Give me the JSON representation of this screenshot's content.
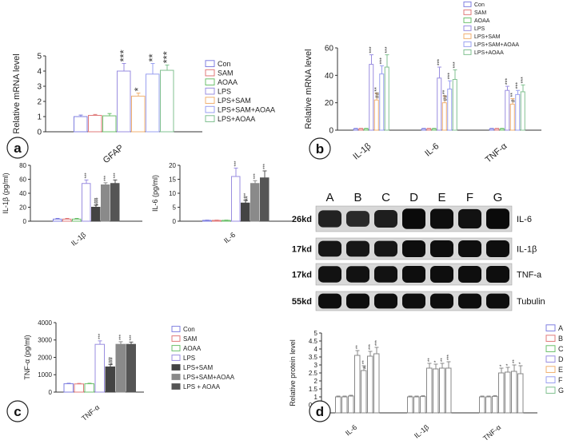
{
  "colors": {
    "axis": "#333333",
    "text": "#222222",
    "star": "#333333",
    "series": [
      "#7f7fe0",
      "#e07a7a",
      "#6cc06c",
      "#9a8ee0",
      "#f0b070",
      "#9aa0f0",
      "#80c090"
    ],
    "dark_series": [
      "#444444",
      "#8a8a8a",
      "#555555"
    ],
    "blot_band": "#1a1a1a"
  },
  "chart_data": [
    {
      "id": "a",
      "type": "bar",
      "panel_letter": "a",
      "categories": [
        "GFAP"
      ],
      "ylabel": "Relative mRNA level",
      "ylim": [
        0,
        5
      ],
      "yticks": [
        "0",
        "1",
        "2",
        "3",
        "4",
        "5"
      ],
      "legend": [
        "Con",
        "SAM",
        "AOAA",
        "LPS",
        "LPS+SAM",
        "LPS+SAM+AOAA",
        "LPS+AOAA"
      ],
      "legend_position": "right",
      "series": [
        {
          "name": "Con",
          "values": [
            1.0
          ],
          "err": [
            0.1
          ],
          "stars": [
            ""
          ]
        },
        {
          "name": "SAM",
          "values": [
            1.08
          ],
          "err": [
            0.06
          ],
          "stars": [
            ""
          ]
        },
        {
          "name": "AOAA",
          "values": [
            1.05
          ],
          "err": [
            0.15
          ],
          "stars": [
            ""
          ]
        },
        {
          "name": "LPS",
          "values": [
            4.0
          ],
          "err": [
            0.5
          ],
          "stars": [
            "***"
          ]
        },
        {
          "name": "LPS+SAM",
          "values": [
            2.35
          ],
          "err": [
            0.2
          ],
          "stars": [
            "*",
            "###"
          ]
        },
        {
          "name": "LPS+SAM+AOAA",
          "values": [
            3.8
          ],
          "err": [
            0.7
          ],
          "stars": [
            "**"
          ]
        },
        {
          "name": "LPS+AOAA",
          "values": [
            4.05
          ],
          "err": [
            0.35
          ],
          "stars": [
            "***"
          ]
        }
      ]
    },
    {
      "id": "b",
      "type": "bar",
      "panel_letter": "b",
      "categories": [
        "IL-1β",
        "IL-6",
        "TNF-α"
      ],
      "ylabel": "Relative mRNA level",
      "ylim": [
        0,
        60
      ],
      "yticks": [
        "0",
        "20",
        "40",
        "60"
      ],
      "legend": [
        "Con",
        "SAM",
        "AOAA",
        "LPS",
        "LPS+SAM",
        "LPS+SAM+AOAA",
        "LPS+AOAA"
      ],
      "legend_position": "top-right",
      "series": [
        {
          "name": "Con",
          "values": [
            1,
            1,
            1
          ],
          "err": [
            0.3,
            0.3,
            0.3
          ]
        },
        {
          "name": "SAM",
          "values": [
            1,
            1,
            1
          ],
          "err": [
            0.3,
            0.3,
            0.3
          ]
        },
        {
          "name": "AOAA",
          "values": [
            1,
            1,
            1
          ],
          "err": [
            0.3,
            0.3,
            0.3
          ]
        },
        {
          "name": "LPS",
          "values": [
            48,
            38,
            29
          ],
          "err": [
            7,
            8,
            3
          ],
          "stars": [
            "***",
            "***",
            "***"
          ]
        },
        {
          "name": "LPS+SAM",
          "values": [
            22,
            20,
            19
          ],
          "err": [
            5,
            5,
            4
          ],
          "stars": [
            "**",
            "**",
            "**"
          ],
          "hash": [
            "##",
            "##",
            "#"
          ]
        },
        {
          "name": "LPS+SAM+AOAA",
          "values": [
            41,
            30,
            26
          ],
          "err": [
            6,
            6,
            3
          ],
          "stars": [
            "***",
            "***",
            "***"
          ]
        },
        {
          "name": "LPS+AOAA",
          "values": [
            46,
            37,
            28
          ],
          "err": [
            9,
            7,
            5
          ],
          "stars": [
            "***",
            "***",
            "***"
          ]
        }
      ]
    },
    {
      "id": "c1",
      "type": "bar",
      "categories": [
        "IL-1β"
      ],
      "ylabel": "IL-1β (pg/ml)",
      "ylim": [
        0,
        80
      ],
      "yticks": [
        "0",
        "20",
        "40",
        "60",
        "80"
      ],
      "series": [
        {
          "name": "Con",
          "values": [
            3
          ],
          "err": [
            1
          ]
        },
        {
          "name": "SAM",
          "values": [
            3
          ],
          "err": [
            1
          ]
        },
        {
          "name": "AOAA",
          "values": [
            3
          ],
          "err": [
            1
          ]
        },
        {
          "name": "LPS",
          "values": [
            54
          ],
          "err": [
            5
          ],
          "stars": [
            "***"
          ]
        },
        {
          "name": "LPS+SAM",
          "values": [
            20
          ],
          "err": [
            3
          ],
          "stars": [
            "***"
          ],
          "hash": [
            "###"
          ]
        },
        {
          "name": "LPS+SAM+AOAA",
          "values": [
            52
          ],
          "err": [
            3
          ],
          "stars": [
            "***"
          ]
        },
        {
          "name": "LPS + AOAA",
          "values": [
            54
          ],
          "err": [
            5
          ],
          "stars": [
            "***"
          ]
        }
      ]
    },
    {
      "id": "c2",
      "type": "bar",
      "categories": [
        "IL-6"
      ],
      "ylabel": "IL-6 (pg/ml)",
      "ylim": [
        0,
        20
      ],
      "yticks": [
        "0",
        "5",
        "10",
        "15",
        "20"
      ],
      "series": [
        {
          "name": "Con",
          "values": [
            0.3
          ],
          "err": [
            0.1
          ]
        },
        {
          "name": "SAM",
          "values": [
            0.3
          ],
          "err": [
            0.1
          ]
        },
        {
          "name": "AOAA",
          "values": [
            0.3
          ],
          "err": [
            0.1
          ]
        },
        {
          "name": "LPS",
          "values": [
            16
          ],
          "err": [
            3
          ],
          "stars": [
            "***"
          ]
        },
        {
          "name": "LPS+SAM",
          "values": [
            6.5
          ],
          "err": [
            1
          ],
          "stars": [
            "***"
          ],
          "hash": [
            "##"
          ]
        },
        {
          "name": "LPS+SAM+AOAA",
          "values": [
            13.5
          ],
          "err": [
            1
          ],
          "stars": [
            "***"
          ]
        },
        {
          "name": "LPS + AOAA",
          "values": [
            15.5
          ],
          "err": [
            2.5
          ],
          "stars": [
            "***"
          ]
        }
      ]
    },
    {
      "id": "c3",
      "type": "bar",
      "panel_letter": "c",
      "categories": [
        "TNF-α"
      ],
      "ylabel": "TNF-α (pg/ml)",
      "ylim": [
        0,
        4000
      ],
      "yticks": [
        "0",
        "1000",
        "2000",
        "3000",
        "4000"
      ],
      "legend": [
        "Con",
        "SAM",
        "AOAA",
        "LPS",
        "LPS+SAM",
        "LPS+SAM+AOAA",
        "LPS + AOAA"
      ],
      "legend_position": "right",
      "series": [
        {
          "name": "Con",
          "values": [
            480
          ],
          "err": [
            30
          ]
        },
        {
          "name": "SAM",
          "values": [
            470
          ],
          "err": [
            30
          ]
        },
        {
          "name": "AOAA",
          "values": [
            480
          ],
          "err": [
            30
          ]
        },
        {
          "name": "LPS",
          "values": [
            2750
          ],
          "err": [
            200
          ],
          "stars": [
            "***"
          ]
        },
        {
          "name": "LPS+SAM",
          "values": [
            1450
          ],
          "err": [
            150
          ],
          "stars": [
            "***"
          ],
          "hash": [
            "###"
          ]
        },
        {
          "name": "LPS+SAM+AOAA",
          "values": [
            2750
          ],
          "err": [
            150
          ],
          "stars": [
            "***"
          ]
        },
        {
          "name": "LPS + AOAA",
          "values": [
            2750
          ],
          "err": [
            130
          ],
          "stars": [
            "***"
          ]
        }
      ]
    },
    {
      "id": "d",
      "type": "bar",
      "panel_letter": "d",
      "categories": [
        "IL-6",
        "IL-1β",
        "TNF-α"
      ],
      "ylabel": "Relative protein level",
      "ylim": [
        0,
        5
      ],
      "yticks": [
        "0",
        "0.5",
        "1",
        "1.5",
        "2",
        "2.5",
        "3",
        "3.5",
        "4",
        "4.5",
        "5"
      ],
      "legend": [
        "A",
        "B",
        "C",
        "D",
        "E",
        "F",
        "G"
      ],
      "legend_position": "right",
      "series": [
        {
          "name": "A",
          "values": [
            1,
            1,
            1
          ],
          "err": [
            0.05,
            0.05,
            0.05
          ]
        },
        {
          "name": "B",
          "values": [
            1,
            1,
            1
          ],
          "err": [
            0.05,
            0.05,
            0.05
          ]
        },
        {
          "name": "C",
          "values": [
            1.05,
            1.02,
            1.03
          ],
          "err": [
            0.05,
            0.05,
            0.05
          ]
        },
        {
          "name": "D",
          "values": [
            3.6,
            2.8,
            2.5
          ],
          "err": [
            0.3,
            0.3,
            0.3
          ],
          "stars": [
            "**",
            "**",
            "*"
          ]
        },
        {
          "name": "E",
          "values": [
            2.65,
            2.75,
            2.55
          ],
          "err": [
            0.3,
            0.3,
            0.3
          ],
          "stars": [
            "**",
            "*",
            "*"
          ],
          "hash": [
            "#",
            "",
            ""
          ]
        },
        {
          "name": "F",
          "values": [
            3.55,
            2.8,
            2.6
          ],
          "err": [
            0.3,
            0.3,
            0.4
          ],
          "stars": [
            "***",
            "**",
            "**"
          ]
        },
        {
          "name": "G",
          "values": [
            3.7,
            2.8,
            2.45
          ],
          "err": [
            0.4,
            0.4,
            0.5
          ],
          "stars": [
            "***",
            "***",
            "*"
          ]
        }
      ]
    }
  ],
  "blot": {
    "lanes": [
      "A",
      "B",
      "C",
      "D",
      "E",
      "F",
      "G"
    ],
    "rows": [
      {
        "kd": "26kd",
        "label": "IL-6",
        "intensity": [
          0.7,
          0.6,
          0.75,
          1,
          0.95,
          0.9,
          1
        ]
      },
      {
        "kd": "17kd",
        "label": "IL-1β",
        "intensity": [
          0.85,
          0.85,
          0.85,
          0.95,
          0.95,
          0.95,
          0.95
        ]
      },
      {
        "kd": "17kd",
        "label": "TNF-a",
        "intensity": [
          0.9,
          0.9,
          0.9,
          0.95,
          0.95,
          0.95,
          0.95
        ]
      },
      {
        "kd": "55kd",
        "label": "Tubulin",
        "intensity": [
          0.95,
          0.95,
          0.95,
          0.95,
          0.95,
          0.95,
          0.95
        ]
      }
    ]
  }
}
